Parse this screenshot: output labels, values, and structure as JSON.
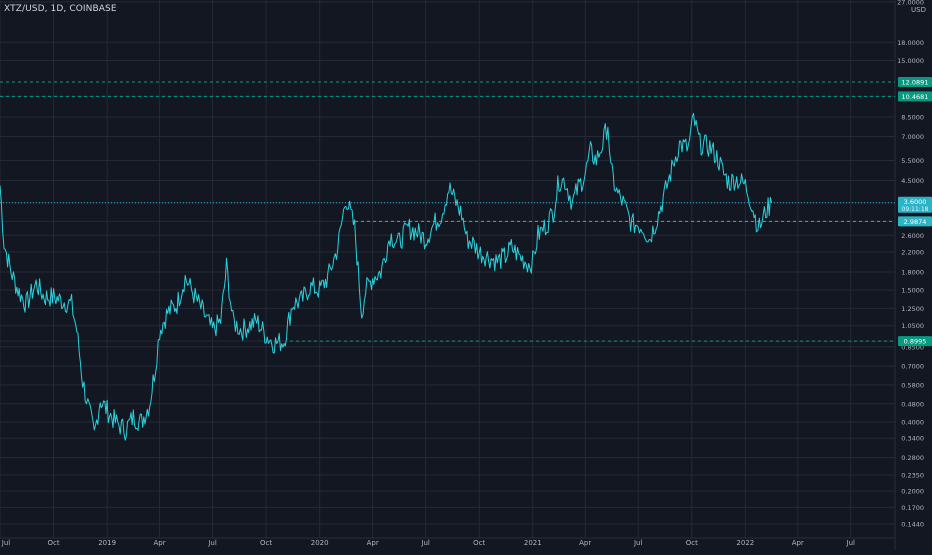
{
  "header": {
    "symbol": "XTZ/USD, 1D, COINBASE",
    "currency": "USD"
  },
  "chart_data": {
    "type": "line",
    "title": "XTZ/USD, 1D, COINBASE",
    "xlabel": "",
    "ylabel": "USD",
    "y_scale": "log",
    "ylim": [
      0.125,
      27.5
    ],
    "x_start": "2018-07-01",
    "x_end": "2022-09-15",
    "x_ticks": [
      {
        "label": "Jul",
        "date": "2018-07-01"
      },
      {
        "label": "Oct",
        "date": "2018-10-01"
      },
      {
        "label": "2019",
        "date": "2019-01-01"
      },
      {
        "label": "Apr",
        "date": "2019-04-01"
      },
      {
        "label": "Jul",
        "date": "2019-07-01"
      },
      {
        "label": "Oct",
        "date": "2019-10-01"
      },
      {
        "label": "2020",
        "date": "2020-01-01"
      },
      {
        "label": "Apr",
        "date": "2020-04-01"
      },
      {
        "label": "Jul",
        "date": "2020-07-01"
      },
      {
        "label": "Oct",
        "date": "2020-10-01"
      },
      {
        "label": "2021",
        "date": "2021-01-01"
      },
      {
        "label": "Apr",
        "date": "2021-04-01"
      },
      {
        "label": "Jul",
        "date": "2021-07-01"
      },
      {
        "label": "Oct",
        "date": "2021-10-01"
      },
      {
        "label": "2022",
        "date": "2022-01-01"
      },
      {
        "label": "Apr",
        "date": "2022-04-01"
      },
      {
        "label": "Jul",
        "date": "2022-07-01"
      }
    ],
    "y_ticks": [
      "27.0000",
      "18.0000",
      "15.0000",
      "10.4681",
      "8.5000",
      "7.0000",
      "5.5000",
      "4.5000",
      "3.6000",
      "2.9874",
      "2.6000",
      "2.2000",
      "1.8000",
      "1.5000",
      "1.2500",
      "1.0500",
      "0.8995",
      "0.8500",
      "0.7000",
      "0.5800",
      "0.4800",
      "0.4000",
      "0.3400",
      "0.2800",
      "0.2350",
      "0.2000",
      "0.1700",
      "0.1440"
    ],
    "series": [
      {
        "values": [
          {
            "x": "2018-07-01",
            "y": 4.3
          },
          {
            "x": "2018-07-08",
            "y": 2.4
          },
          {
            "x": "2018-07-20",
            "y": 1.8
          },
          {
            "x": "2018-08-01",
            "y": 1.5
          },
          {
            "x": "2018-08-15",
            "y": 1.3
          },
          {
            "x": "2018-09-01",
            "y": 1.6
          },
          {
            "x": "2018-09-15",
            "y": 1.4
          },
          {
            "x": "2018-10-01",
            "y": 1.4
          },
          {
            "x": "2018-10-15",
            "y": 1.35
          },
          {
            "x": "2018-11-01",
            "y": 1.3
          },
          {
            "x": "2018-11-10",
            "y": 1.0
          },
          {
            "x": "2018-11-20",
            "y": 0.6
          },
          {
            "x": "2018-12-01",
            "y": 0.45
          },
          {
            "x": "2018-12-10",
            "y": 0.35
          },
          {
            "x": "2018-12-20",
            "y": 0.5
          },
          {
            "x": "2019-01-01",
            "y": 0.45
          },
          {
            "x": "2019-01-15",
            "y": 0.4
          },
          {
            "x": "2019-02-01",
            "y": 0.37
          },
          {
            "x": "2019-02-15",
            "y": 0.42
          },
          {
            "x": "2019-03-01",
            "y": 0.4
          },
          {
            "x": "2019-03-15",
            "y": 0.48
          },
          {
            "x": "2019-03-25",
            "y": 0.7
          },
          {
            "x": "2019-04-01",
            "y": 1.0
          },
          {
            "x": "2019-04-15",
            "y": 1.2
          },
          {
            "x": "2019-05-01",
            "y": 1.3
          },
          {
            "x": "2019-05-15",
            "y": 1.7
          },
          {
            "x": "2019-06-01",
            "y": 1.4
          },
          {
            "x": "2019-06-15",
            "y": 1.2
          },
          {
            "x": "2019-07-01",
            "y": 1.0
          },
          {
            "x": "2019-07-15",
            "y": 1.1
          },
          {
            "x": "2019-07-25",
            "y": 1.9
          },
          {
            "x": "2019-08-05",
            "y": 1.1
          },
          {
            "x": "2019-08-20",
            "y": 1.0
          },
          {
            "x": "2019-09-01",
            "y": 1.05
          },
          {
            "x": "2019-09-15",
            "y": 1.1
          },
          {
            "x": "2019-10-01",
            "y": 0.95
          },
          {
            "x": "2019-10-15",
            "y": 0.88
          },
          {
            "x": "2019-11-01",
            "y": 0.9
          },
          {
            "x": "2019-11-15",
            "y": 1.3
          },
          {
            "x": "2019-12-01",
            "y": 1.35
          },
          {
            "x": "2019-12-15",
            "y": 1.55
          },
          {
            "x": "2020-01-01",
            "y": 1.5
          },
          {
            "x": "2020-01-15",
            "y": 1.7
          },
          {
            "x": "2020-02-01",
            "y": 2.3
          },
          {
            "x": "2020-02-15",
            "y": 3.8
          },
          {
            "x": "2020-03-01",
            "y": 2.8
          },
          {
            "x": "2020-03-13",
            "y": 1.2
          },
          {
            "x": "2020-03-20",
            "y": 1.5
          },
          {
            "x": "2020-04-01",
            "y": 1.7
          },
          {
            "x": "2020-04-15",
            "y": 1.8
          },
          {
            "x": "2020-05-01",
            "y": 2.6
          },
          {
            "x": "2020-05-15",
            "y": 2.4
          },
          {
            "x": "2020-06-01",
            "y": 2.8
          },
          {
            "x": "2020-06-15",
            "y": 2.7
          },
          {
            "x": "2020-07-01",
            "y": 2.5
          },
          {
            "x": "2020-07-15",
            "y": 2.9
          },
          {
            "x": "2020-07-28",
            "y": 3.2
          },
          {
            "x": "2020-08-10",
            "y": 4.2
          },
          {
            "x": "2020-08-20",
            "y": 3.7
          },
          {
            "x": "2020-09-01",
            "y": 3.2
          },
          {
            "x": "2020-09-10",
            "y": 2.5
          },
          {
            "x": "2020-09-20",
            "y": 2.4
          },
          {
            "x": "2020-10-01",
            "y": 2.2
          },
          {
            "x": "2020-10-15",
            "y": 2.1
          },
          {
            "x": "2020-11-01",
            "y": 2.0
          },
          {
            "x": "2020-11-15",
            "y": 2.1
          },
          {
            "x": "2020-11-25",
            "y": 2.3
          },
          {
            "x": "2020-12-10",
            "y": 2.1
          },
          {
            "x": "2020-12-25",
            "y": 1.95
          },
          {
            "x": "2021-01-01",
            "y": 2.0
          },
          {
            "x": "2021-01-10",
            "y": 2.6
          },
          {
            "x": "2021-01-25",
            "y": 2.9
          },
          {
            "x": "2021-02-05",
            "y": 3.3
          },
          {
            "x": "2021-02-15",
            "y": 4.5
          },
          {
            "x": "2021-02-25",
            "y": 4.5
          },
          {
            "x": "2021-03-10",
            "y": 3.6
          },
          {
            "x": "2021-03-20",
            "y": 4.2
          },
          {
            "x": "2021-04-01",
            "y": 4.8
          },
          {
            "x": "2021-04-10",
            "y": 6.0
          },
          {
            "x": "2021-04-20",
            "y": 5.5
          },
          {
            "x": "2021-05-01",
            "y": 6.5
          },
          {
            "x": "2021-05-10",
            "y": 8.0
          },
          {
            "x": "2021-05-15",
            "y": 5.0
          },
          {
            "x": "2021-05-25",
            "y": 4.0
          },
          {
            "x": "2021-06-05",
            "y": 3.6
          },
          {
            "x": "2021-06-20",
            "y": 2.9
          },
          {
            "x": "2021-07-01",
            "y": 2.9
          },
          {
            "x": "2021-07-10",
            "y": 2.8
          },
          {
            "x": "2021-07-20",
            "y": 2.5
          },
          {
            "x": "2021-08-01",
            "y": 3.0
          },
          {
            "x": "2021-08-15",
            "y": 3.9
          },
          {
            "x": "2021-09-01",
            "y": 5.5
          },
          {
            "x": "2021-09-10",
            "y": 6.5
          },
          {
            "x": "2021-09-25",
            "y": 6.2
          },
          {
            "x": "2021-10-04",
            "y": 8.4
          },
          {
            "x": "2021-10-15",
            "y": 6.5
          },
          {
            "x": "2021-11-01",
            "y": 6.3
          },
          {
            "x": "2021-11-15",
            "y": 5.6
          },
          {
            "x": "2021-11-25",
            "y": 4.8
          },
          {
            "x": "2021-12-05",
            "y": 4.4
          },
          {
            "x": "2021-12-15",
            "y": 4.6
          },
          {
            "x": "2022-01-01",
            "y": 4.3
          },
          {
            "x": "2022-01-10",
            "y": 3.7
          },
          {
            "x": "2022-01-20",
            "y": 3.0
          },
          {
            "x": "2022-01-25",
            "y": 2.8
          },
          {
            "x": "2022-02-05",
            "y": 3.3
          },
          {
            "x": "2022-02-15",
            "y": 3.6
          }
        ]
      }
    ],
    "horizontal_levels": [
      {
        "value": 12.0891,
        "label": "12.0891",
        "color": "#089981"
      },
      {
        "value": 10.4681,
        "label": "10.4681",
        "color": "#089981"
      },
      {
        "value": 2.9874,
        "label": "2.9874",
        "color": "#2db5c4"
      },
      {
        "value": 0.8995,
        "label": "0.8995",
        "color": "#089981"
      }
    ],
    "current_price": {
      "value": "3.6000",
      "countdown": "09:11:18",
      "color": "#2bb3c6"
    },
    "colors": {
      "background": "#131722",
      "line": "#2bd1db",
      "grid": "#242a36",
      "axis_text": "#b2b5be"
    },
    "grid": true
  }
}
